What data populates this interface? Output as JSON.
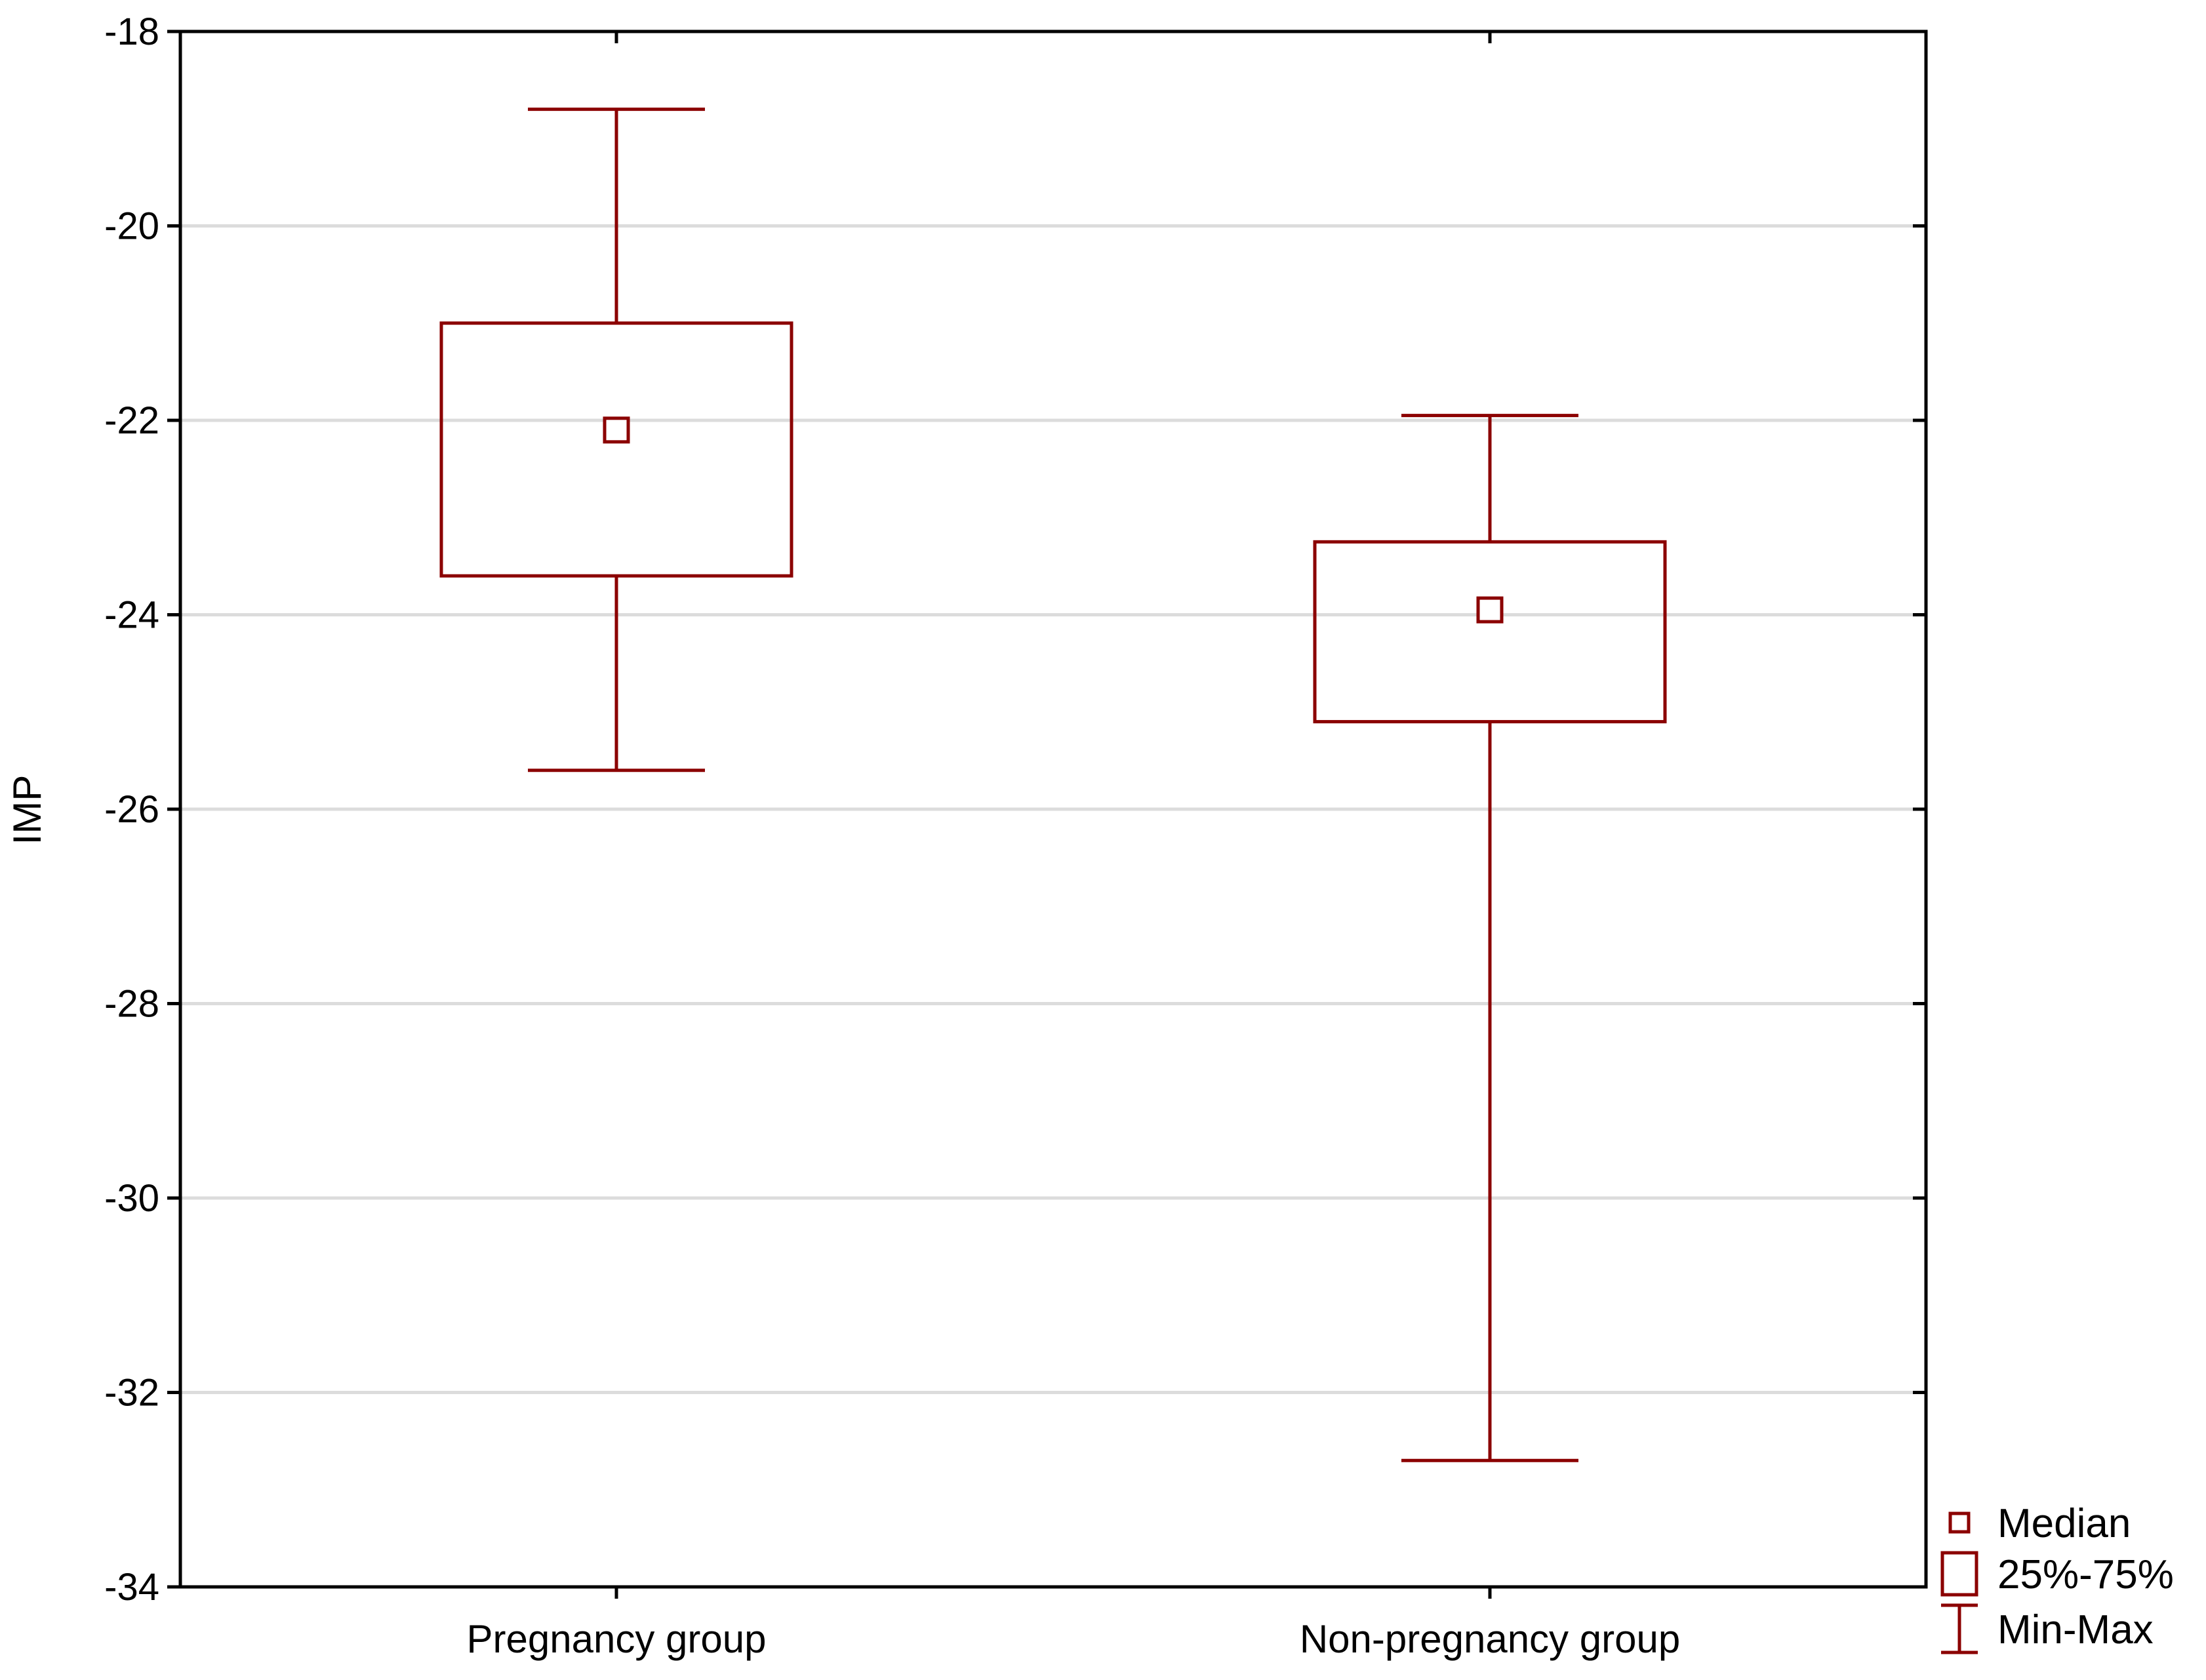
{
  "chart_data": {
    "type": "boxplot",
    "title": "",
    "xlabel": "",
    "ylabel": "IMP",
    "ylim": [
      -34,
      -18
    ],
    "yticks": [
      -18,
      -20,
      -22,
      -24,
      -26,
      -28,
      -30,
      -32,
      -34
    ],
    "ytick_labels": [
      "-18",
      "-20",
      "-22",
      "-24",
      "-26",
      "-28",
      "-30",
      "-32",
      "-34"
    ],
    "grid": "horizontal",
    "legend_position": "bottom-right, outside plot",
    "colors": {
      "series": "#8b0000",
      "grid": "#dcdcdc",
      "axis": "#000000"
    },
    "categories": [
      "Pregnancy group",
      "Non-pregnancy group"
    ],
    "boxes": [
      {
        "category": "Pregnancy group",
        "min": -25.6,
        "q1": -23.6,
        "median": -22.1,
        "q3": -21.0,
        "max": -18.8
      },
      {
        "category": "Non-pregnancy group",
        "min": -32.7,
        "q1": -25.1,
        "median": -23.95,
        "q3": -23.25,
        "max": -21.95
      }
    ],
    "legend": [
      {
        "symbol": "median-marker",
        "label": "Median"
      },
      {
        "symbol": "box",
        "label": "25%-75%"
      },
      {
        "symbol": "whisker",
        "label": "Min-Max"
      }
    ]
  }
}
